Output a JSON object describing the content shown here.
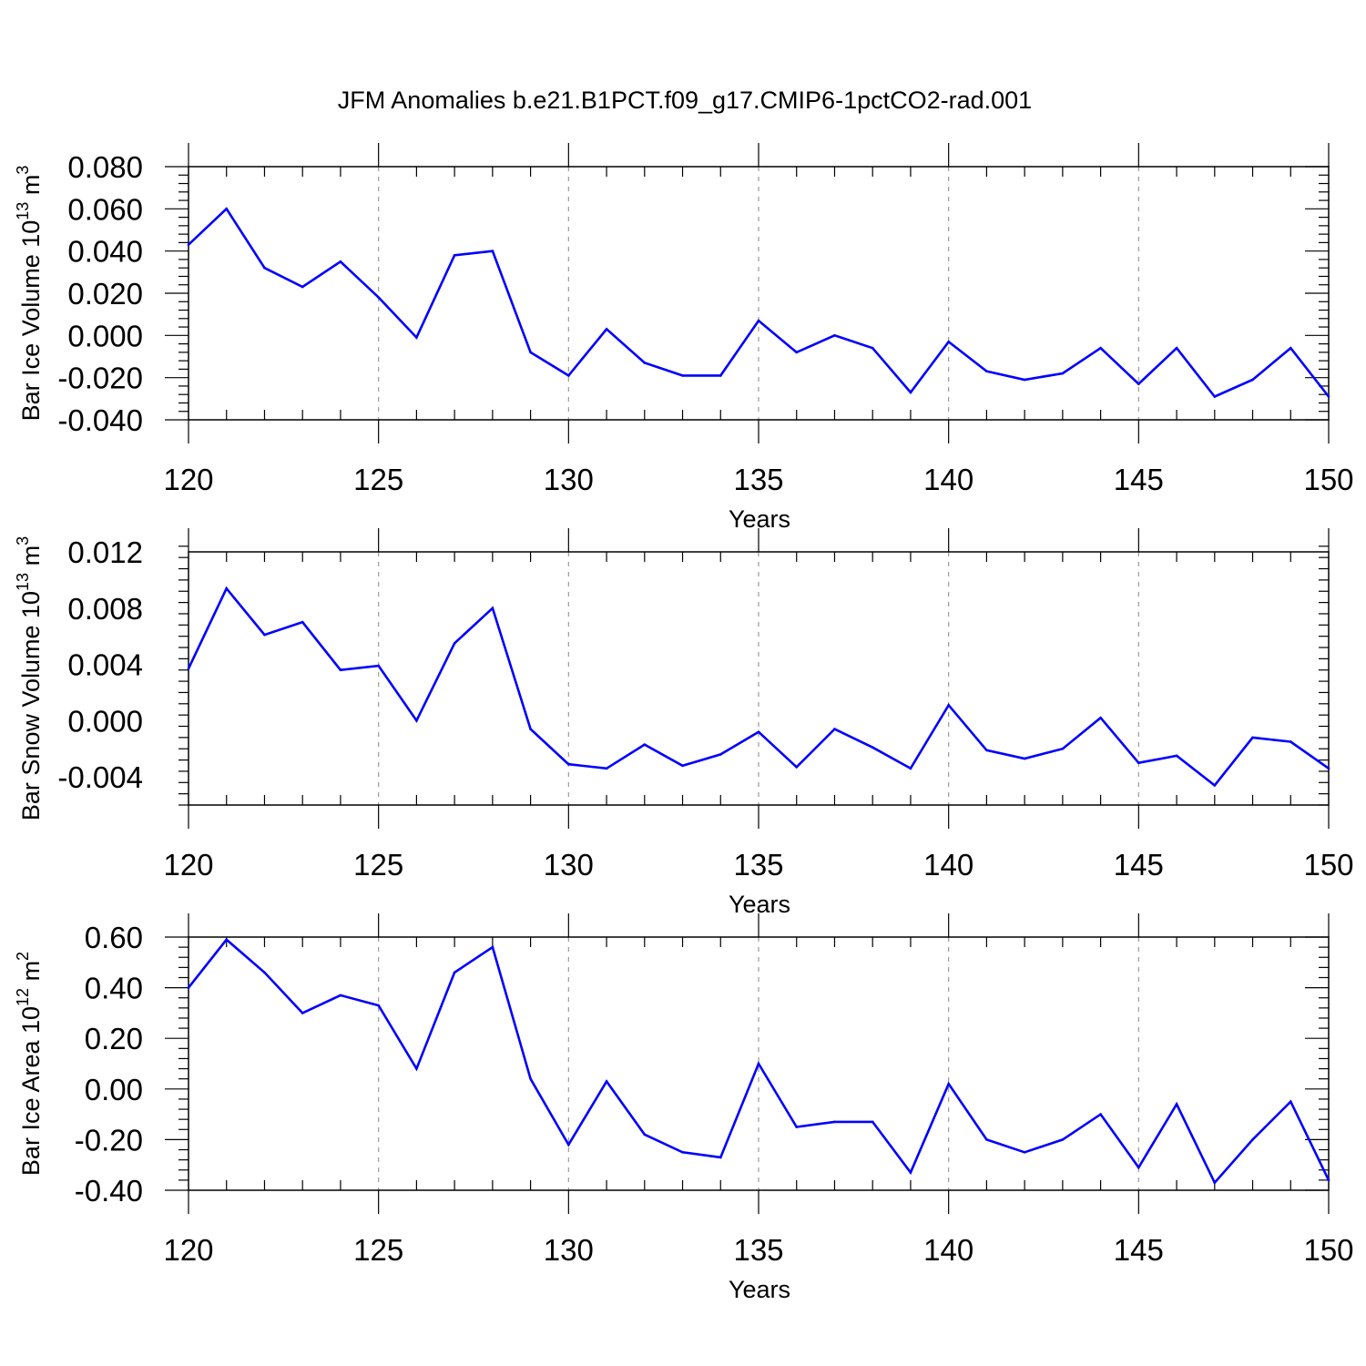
{
  "title": "JFM Anomalies b.e21.B1PCT.f09_g17.CMIP6-1pctCO2-rad.001",
  "colors": {
    "line": "#0000ff",
    "axis": "#000000",
    "grid": "#9a9a9a"
  },
  "chart_data": [
    {
      "type": "line",
      "title": "",
      "xlabel": "Years",
      "ylabel": "Bar Ice Volume 10",
      "ylabel_exp": "13",
      "ylabel_unit": " m",
      "ylabel_unit_exp": "3",
      "xlim": [
        120,
        150
      ],
      "ylim": [
        -0.04,
        0.08
      ],
      "xticks": [
        120,
        125,
        130,
        135,
        140,
        145,
        150
      ],
      "xtick_labels": [
        "120",
        "125",
        "130",
        "135",
        "140",
        "145",
        "150"
      ],
      "yticks": [
        -0.04,
        -0.02,
        0.0,
        0.02,
        0.04,
        0.06,
        0.08
      ],
      "ytick_labels": [
        "-0.040",
        "-0.020",
        "0.000",
        "0.020",
        "0.040",
        "0.060",
        "0.080"
      ],
      "grid": "vertical-dashed",
      "x": [
        120,
        121,
        122,
        123,
        124,
        125,
        126,
        127,
        128,
        129,
        130,
        131,
        132,
        133,
        134,
        135,
        136,
        137,
        138,
        139,
        140,
        141,
        142,
        143,
        144,
        145,
        146,
        147,
        148,
        149,
        150
      ],
      "series": [
        {
          "values": [
            0.043,
            0.06,
            0.032,
            0.023,
            0.035,
            0.018,
            -0.001,
            0.038,
            0.04,
            -0.008,
            -0.019,
            0.003,
            -0.013,
            -0.019,
            -0.019,
            0.007,
            -0.008,
            0.0,
            -0.006,
            -0.027,
            -0.003,
            -0.017,
            -0.021,
            -0.018,
            -0.006,
            -0.023,
            -0.006,
            -0.029,
            -0.021,
            -0.006,
            -0.029
          ]
        }
      ]
    },
    {
      "type": "line",
      "title": "",
      "xlabel": "Years",
      "ylabel": "Bar Snow Volume 10",
      "ylabel_exp": "13",
      "ylabel_unit": " m",
      "ylabel_unit_exp": "3",
      "xlim": [
        120,
        150
      ],
      "ylim": [
        -0.006,
        0.012
      ],
      "xticks": [
        120,
        125,
        130,
        135,
        140,
        145,
        150
      ],
      "xtick_labels": [
        "120",
        "125",
        "130",
        "135",
        "140",
        "145",
        "150"
      ],
      "yticks": [
        -0.004,
        0.0,
        0.004,
        0.008,
        0.012
      ],
      "ytick_labels": [
        "-0.004",
        "0.000",
        "0.004",
        "0.008",
        "0.012"
      ],
      "grid": "vertical-dashed",
      "x": [
        120,
        121,
        122,
        123,
        124,
        125,
        126,
        127,
        128,
        129,
        130,
        131,
        132,
        133,
        134,
        135,
        136,
        137,
        138,
        139,
        140,
        141,
        142,
        143,
        144,
        145,
        146,
        147,
        148,
        149,
        150
      ],
      "series": [
        {
          "values": [
            0.0037,
            0.0094,
            0.0061,
            0.007,
            0.0036,
            0.0039,
            0.0,
            0.0055,
            0.008,
            -0.0006,
            -0.0031,
            -0.0034,
            -0.0017,
            -0.0032,
            -0.0024,
            -0.0008,
            -0.0033,
            -0.0006,
            -0.0019,
            -0.0034,
            0.0011,
            -0.0021,
            -0.0027,
            -0.002,
            0.0002,
            -0.003,
            -0.0025,
            -0.0046,
            -0.0012,
            -0.0015,
            -0.0034
          ]
        }
      ]
    },
    {
      "type": "line",
      "title": "",
      "xlabel": "Years",
      "ylabel": "Bar Ice Area 10",
      "ylabel_exp": "12",
      "ylabel_unit": " m",
      "ylabel_unit_exp": "2",
      "xlim": [
        120,
        150
      ],
      "ylim": [
        -0.4,
        0.6
      ],
      "xticks": [
        120,
        125,
        130,
        135,
        140,
        145,
        150
      ],
      "xtick_labels": [
        "120",
        "125",
        "130",
        "135",
        "140",
        "145",
        "150"
      ],
      "yticks": [
        -0.4,
        -0.2,
        0.0,
        0.2,
        0.4,
        0.6
      ],
      "ytick_labels": [
        "-0.40",
        "-0.20",
        "0.00",
        "0.20",
        "0.40",
        "0.60"
      ],
      "grid": "vertical-dashed",
      "x": [
        120,
        121,
        122,
        123,
        124,
        125,
        126,
        127,
        128,
        129,
        130,
        131,
        132,
        133,
        134,
        135,
        136,
        137,
        138,
        139,
        140,
        141,
        142,
        143,
        144,
        145,
        146,
        147,
        148,
        149,
        150
      ],
      "series": [
        {
          "values": [
            0.4,
            0.59,
            0.46,
            0.3,
            0.37,
            0.33,
            0.08,
            0.46,
            0.56,
            0.04,
            -0.22,
            0.03,
            -0.18,
            -0.25,
            -0.27,
            0.1,
            -0.15,
            -0.13,
            -0.13,
            -0.33,
            0.02,
            -0.2,
            -0.25,
            -0.2,
            -0.1,
            -0.31,
            -0.06,
            -0.37,
            -0.2,
            -0.05,
            -0.36
          ]
        }
      ]
    }
  ]
}
